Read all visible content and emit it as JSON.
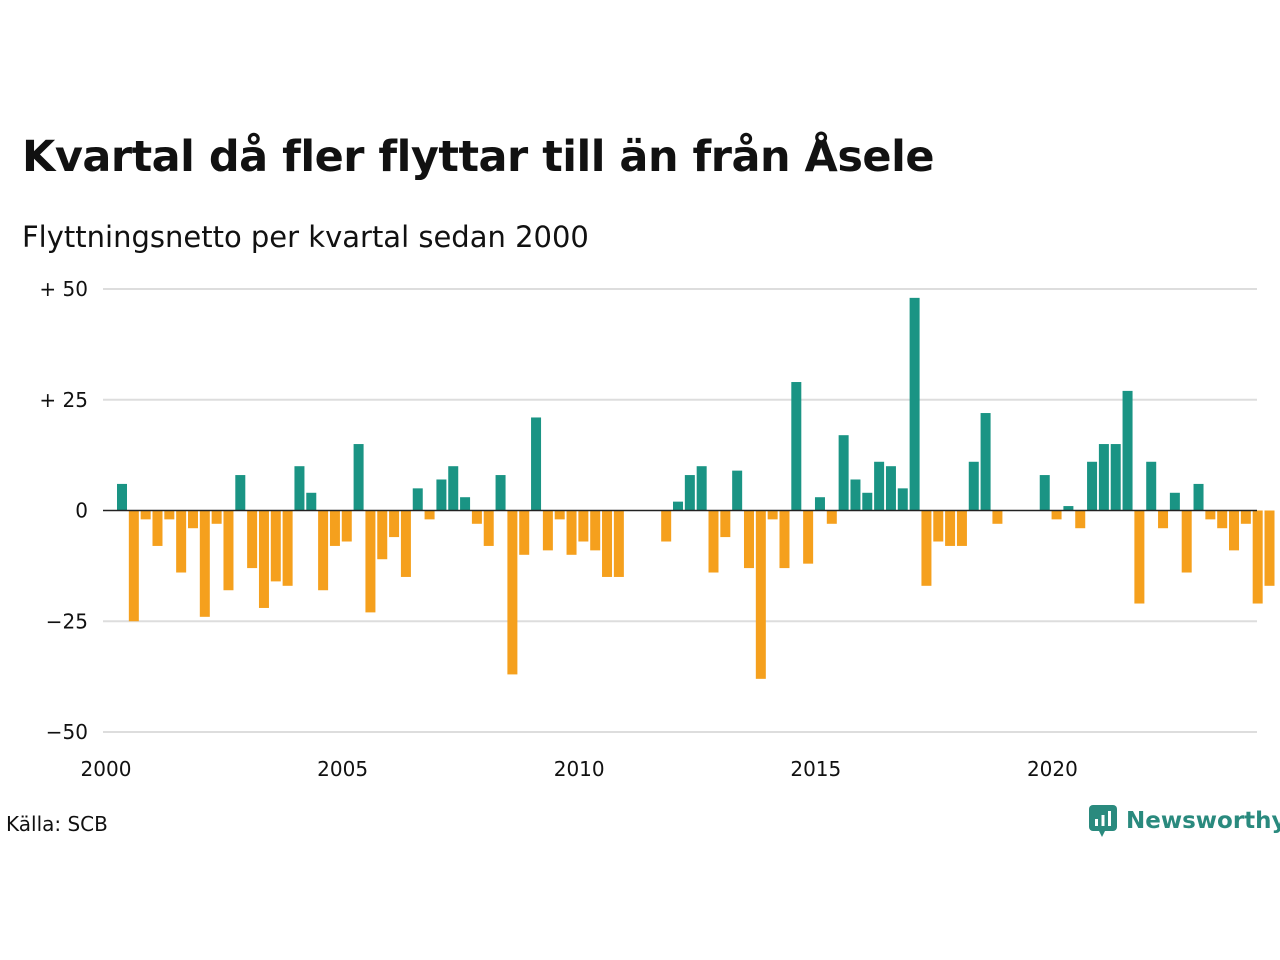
{
  "title": "Kvartal då fler flyttar till än från Åsele",
  "subtitle": "Flyttningsnetto per kvartal sedan 2000",
  "source": "Källa: SCB",
  "brand": {
    "name": "Newsworthy",
    "icon": "newsworthy-logo-icon",
    "color": "#2a8a7e"
  },
  "colors": {
    "positive": "#1a9484",
    "negative": "#f5a01d",
    "grid": "#dddddd",
    "zero": "#222222"
  },
  "chart_data": {
    "type": "bar",
    "title": "Kvartal då fler flyttar till än från Åsele",
    "subtitle": "Flyttningsnetto per kvartal sedan 2000",
    "xlabel": "",
    "ylabel": "",
    "ylim": [
      -50,
      50
    ],
    "yticks": [
      {
        "value": 50,
        "label": "+ 50"
      },
      {
        "value": 25,
        "label": "+ 25"
      },
      {
        "value": 0,
        "label": "0"
      },
      {
        "value": -25,
        "label": "−25"
      },
      {
        "value": -50,
        "label": "−50"
      }
    ],
    "xticks": [
      "2000",
      "2005",
      "2010",
      "2015",
      "2020"
    ],
    "grid": true,
    "start": "2000 Q1",
    "values": [
      6,
      -25,
      -2,
      -8,
      -2,
      -14,
      -4,
      -24,
      -3,
      -18,
      8,
      -13,
      -22,
      -16,
      -17,
      10,
      4,
      -18,
      -8,
      -7,
      15,
      -23,
      -11,
      -6,
      -15,
      5,
      -2,
      7,
      10,
      3,
      -3,
      -8,
      8,
      -37,
      -10,
      21,
      -9,
      -2,
      -10,
      -7,
      -9,
      -15,
      -15,
      0,
      0,
      0,
      -7,
      2,
      8,
      10,
      -14,
      -6,
      9,
      -13,
      -38,
      -2,
      -13,
      29,
      -12,
      3,
      -3,
      17,
      7,
      4,
      11,
      10,
      5,
      48,
      -17,
      -7,
      -8,
      -8,
      11,
      22,
      -3,
      0,
      0,
      0,
      8,
      -2,
      1,
      -4,
      11,
      15,
      15,
      27,
      -21,
      11,
      -4,
      4,
      -14,
      6,
      -2,
      -4,
      -9,
      -3,
      -21,
      -17
    ]
  }
}
